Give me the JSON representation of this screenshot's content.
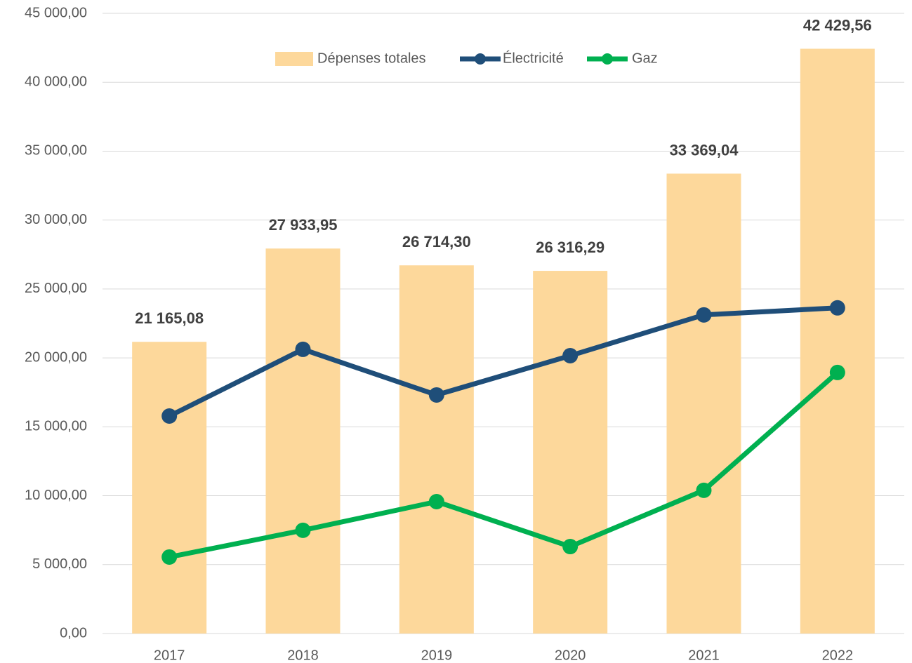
{
  "chart_data": {
    "type": "bar",
    "categories": [
      "2017",
      "2018",
      "2019",
      "2020",
      "2021",
      "2022"
    ],
    "series": [
      {
        "name": "Dépenses totales",
        "type": "bar",
        "color": "#fdd89b",
        "values": [
          21165.08,
          27933.95,
          26714.3,
          26316.29,
          33369.04,
          42429.56
        ],
        "value_labels": [
          "21 165,08",
          "27 933,95",
          "26 714,30",
          "26 316,29",
          "33 369,04",
          "42 429,56"
        ]
      },
      {
        "name": "Électricité",
        "type": "line",
        "color": "#1f4e79",
        "values": [
          15780,
          20620,
          17310,
          20160,
          23120,
          23630
        ]
      },
      {
        "name": "Gaz",
        "type": "line",
        "color": "#00b050",
        "values": [
          5550,
          7490,
          9570,
          6310,
          10390,
          18940
        ]
      }
    ],
    "ylim": [
      0,
      45000
    ],
    "yticks": [
      {
        "value": 0,
        "label": "0,00"
      },
      {
        "value": 5000,
        "label": "5 000,00"
      },
      {
        "value": 10000,
        "label": "10 000,00"
      },
      {
        "value": 15000,
        "label": "15 000,00"
      },
      {
        "value": 20000,
        "label": "20 000,00"
      },
      {
        "value": 25000,
        "label": "25 000,00"
      },
      {
        "value": 30000,
        "label": "30 000,00"
      },
      {
        "value": 35000,
        "label": "35 000,00"
      },
      {
        "value": 40000,
        "label": "40 000,00"
      },
      {
        "value": 45000,
        "label": "45 000,00"
      }
    ],
    "grid": true,
    "legend": "top"
  }
}
